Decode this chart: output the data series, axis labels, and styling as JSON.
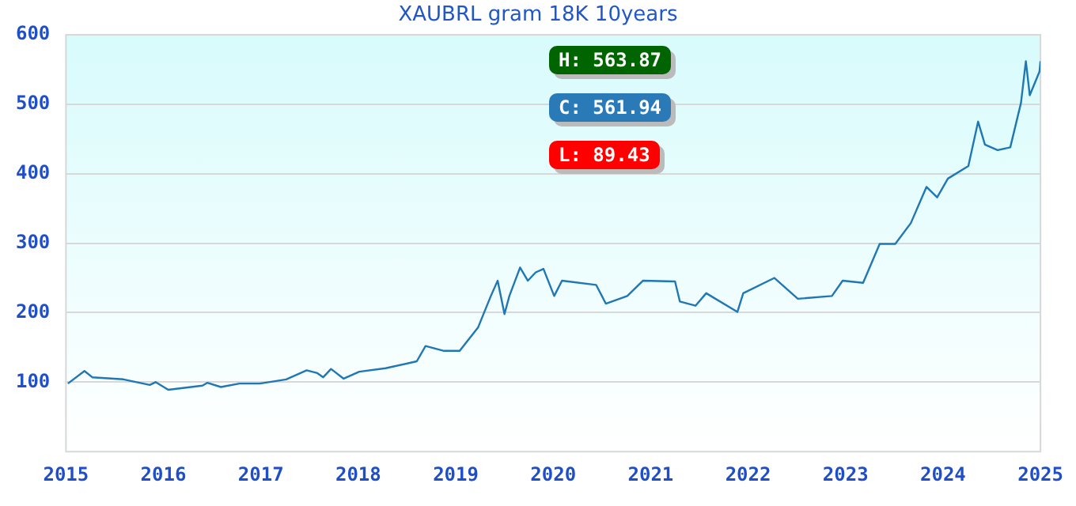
{
  "chart_data": {
    "type": "line",
    "title": "XAUBRL gram 18K 10years",
    "x": [
      2015.02,
      2015.19,
      2015.27,
      2015.59,
      2015.86,
      2015.92,
      2016.05,
      2016.4,
      2016.45,
      2016.59,
      2016.78,
      2016.99,
      2017.26,
      2017.47,
      2017.58,
      2017.64,
      2017.72,
      2017.85,
      2018.01,
      2018.28,
      2018.6,
      2018.69,
      2018.88,
      2019.04,
      2019.23,
      2019.36,
      2019.43,
      2019.5,
      2019.55,
      2019.66,
      2019.74,
      2019.82,
      2019.9,
      2020.01,
      2020.09,
      2020.44,
      2020.54,
      2020.76,
      2020.92,
      2021.25,
      2021.3,
      2021.46,
      2021.57,
      2021.89,
      2021.95,
      2022.27,
      2022.51,
      2022.86,
      2022.97,
      2023.18,
      2023.35,
      2023.51,
      2023.67,
      2023.83,
      2023.94,
      2024.05,
      2024.26,
      2024.36,
      2024.43,
      2024.56,
      2024.69,
      2024.8,
      2024.85,
      2024.89,
      2024.99,
      2025.0
    ],
    "series": [
      {
        "color": "#1f77b4",
        "values": [
          98,
          116,
          107,
          104,
          96,
          100,
          89,
          95,
          99,
          93,
          98,
          98,
          104,
          117,
          113,
          107,
          119,
          105,
          115,
          120,
          130,
          152,
          145,
          145,
          179,
          224,
          246,
          198,
          224,
          265,
          246,
          258,
          263,
          224,
          246,
          240,
          213,
          224,
          246,
          245,
          216,
          210,
          228,
          201,
          228,
          250,
          220,
          224,
          246,
          243,
          299,
          299,
          329,
          381,
          366,
          393,
          411,
          475,
          442,
          434,
          438,
          502,
          562,
          513,
          547,
          562
        ]
      }
    ],
    "xlim": [
      2015,
      2025
    ],
    "xticks": [
      2015,
      2016,
      2017,
      2018,
      2019,
      2020,
      2021,
      2022,
      2023,
      2024,
      2025
    ],
    "ylim": [
      0,
      600
    ],
    "yticks": [
      100,
      200,
      300,
      400,
      500,
      600
    ],
    "annotations": [
      "H: 563.87",
      "C: 561.94",
      "L: 89.43"
    ],
    "grid": "y",
    "legend": false,
    "marker": "none",
    "line_style": "solid"
  }
}
